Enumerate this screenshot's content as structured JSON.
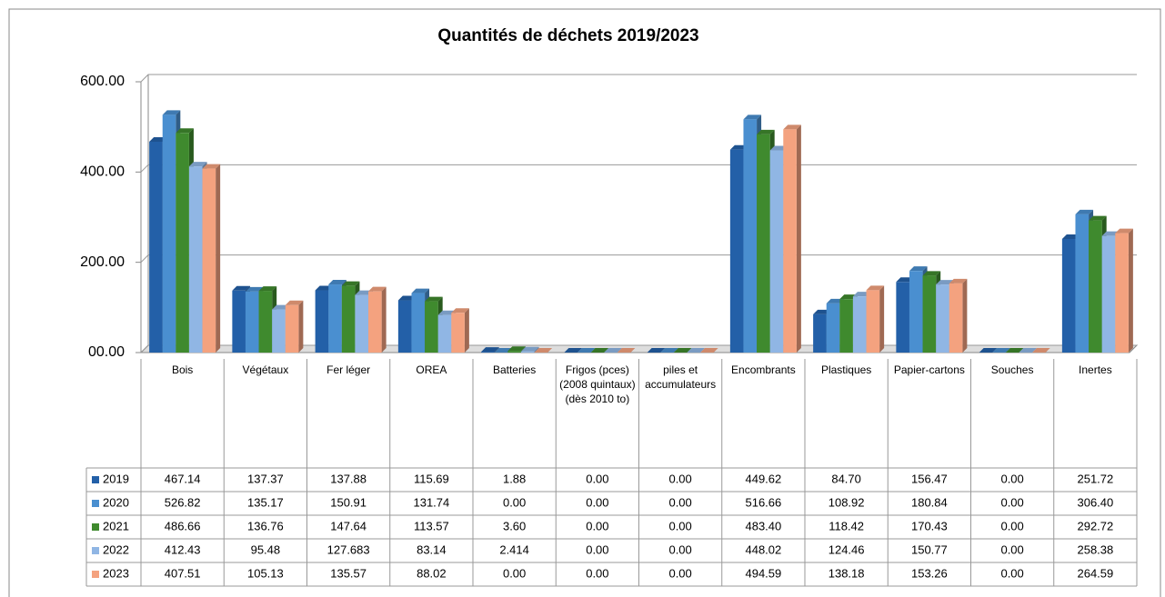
{
  "chart_data": {
    "type": "bar",
    "title": "Quantités de déchets 2019/2023",
    "categories": [
      "Bois",
      "Végétaux",
      "Fer léger",
      "OREA",
      "Batteries",
      "Frigos (pces) (2008 quintaux) (dès 2010 to)",
      "piles et accumulateurs",
      "Encombrants",
      "Plastiques",
      "Papier-cartons",
      "Souches",
      "Inertes"
    ],
    "series": [
      {
        "name": "2019",
        "color": "#2360a8",
        "values": [
          467.14,
          137.37,
          137.88,
          115.69,
          1.88,
          0,
          0,
          449.62,
          84.7,
          156.47,
          0,
          251.72
        ],
        "value_labels": [
          "467.14",
          "137.37",
          "137.88",
          "115.69",
          "1.88",
          "0.00",
          "0.00",
          "449.62",
          "84.70",
          "156.47",
          "0.00",
          "251.72"
        ]
      },
      {
        "name": "2020",
        "color": "#4a8fd0",
        "values": [
          526.82,
          135.17,
          150.91,
          131.74,
          0,
          0,
          0,
          516.66,
          108.92,
          180.84,
          0,
          306.4
        ],
        "value_labels": [
          "526.82",
          "135.17",
          "150.91",
          "131.74",
          "0.00",
          "0.00",
          "0.00",
          "516.66",
          "108.92",
          "180.84",
          "0.00",
          "306.40"
        ]
      },
      {
        "name": "2021",
        "color": "#3f8a2e",
        "values": [
          486.66,
          136.76,
          147.64,
          113.57,
          3.6,
          0,
          0,
          483.4,
          118.42,
          170.43,
          0,
          292.72
        ],
        "value_labels": [
          "486.66",
          "136.76",
          "147.64",
          "113.57",
          "3.60",
          "0.00",
          "0.00",
          "483.40",
          "118.42",
          "170.43",
          "0.00",
          "292.72"
        ]
      },
      {
        "name": "2022",
        "color": "#90b6e4",
        "values": [
          412.43,
          95.48,
          127.683,
          83.14,
          2.414,
          0,
          0,
          448.02,
          124.46,
          150.77,
          0,
          258.38
        ],
        "value_labels": [
          "412.43",
          "95.48",
          "127.683",
          "83.14",
          "2.414",
          "0.00",
          "0.00",
          "448.02",
          "124.46",
          "150.77",
          "0.00",
          "258.38"
        ]
      },
      {
        "name": "2023",
        "color": "#f4a27f",
        "values": [
          407.51,
          105.13,
          135.57,
          88.02,
          0,
          0,
          0,
          494.59,
          138.18,
          153.26,
          0,
          264.59
        ],
        "value_labels": [
          "407.51",
          "105.13",
          "135.57",
          "88.02",
          "0.00",
          "0.00",
          "0.00",
          "494.59",
          "138.18",
          "153.26",
          "0.00",
          "264.59"
        ]
      }
    ],
    "ylim": [
      0,
      600
    ],
    "yticks": [
      {
        "value": 0,
        "label": "00.00"
      },
      {
        "value": 200,
        "label": "200.00"
      },
      {
        "value": 400,
        "label": "400.00"
      },
      {
        "value": 600,
        "label": "600.00"
      }
    ],
    "grid": true
  }
}
